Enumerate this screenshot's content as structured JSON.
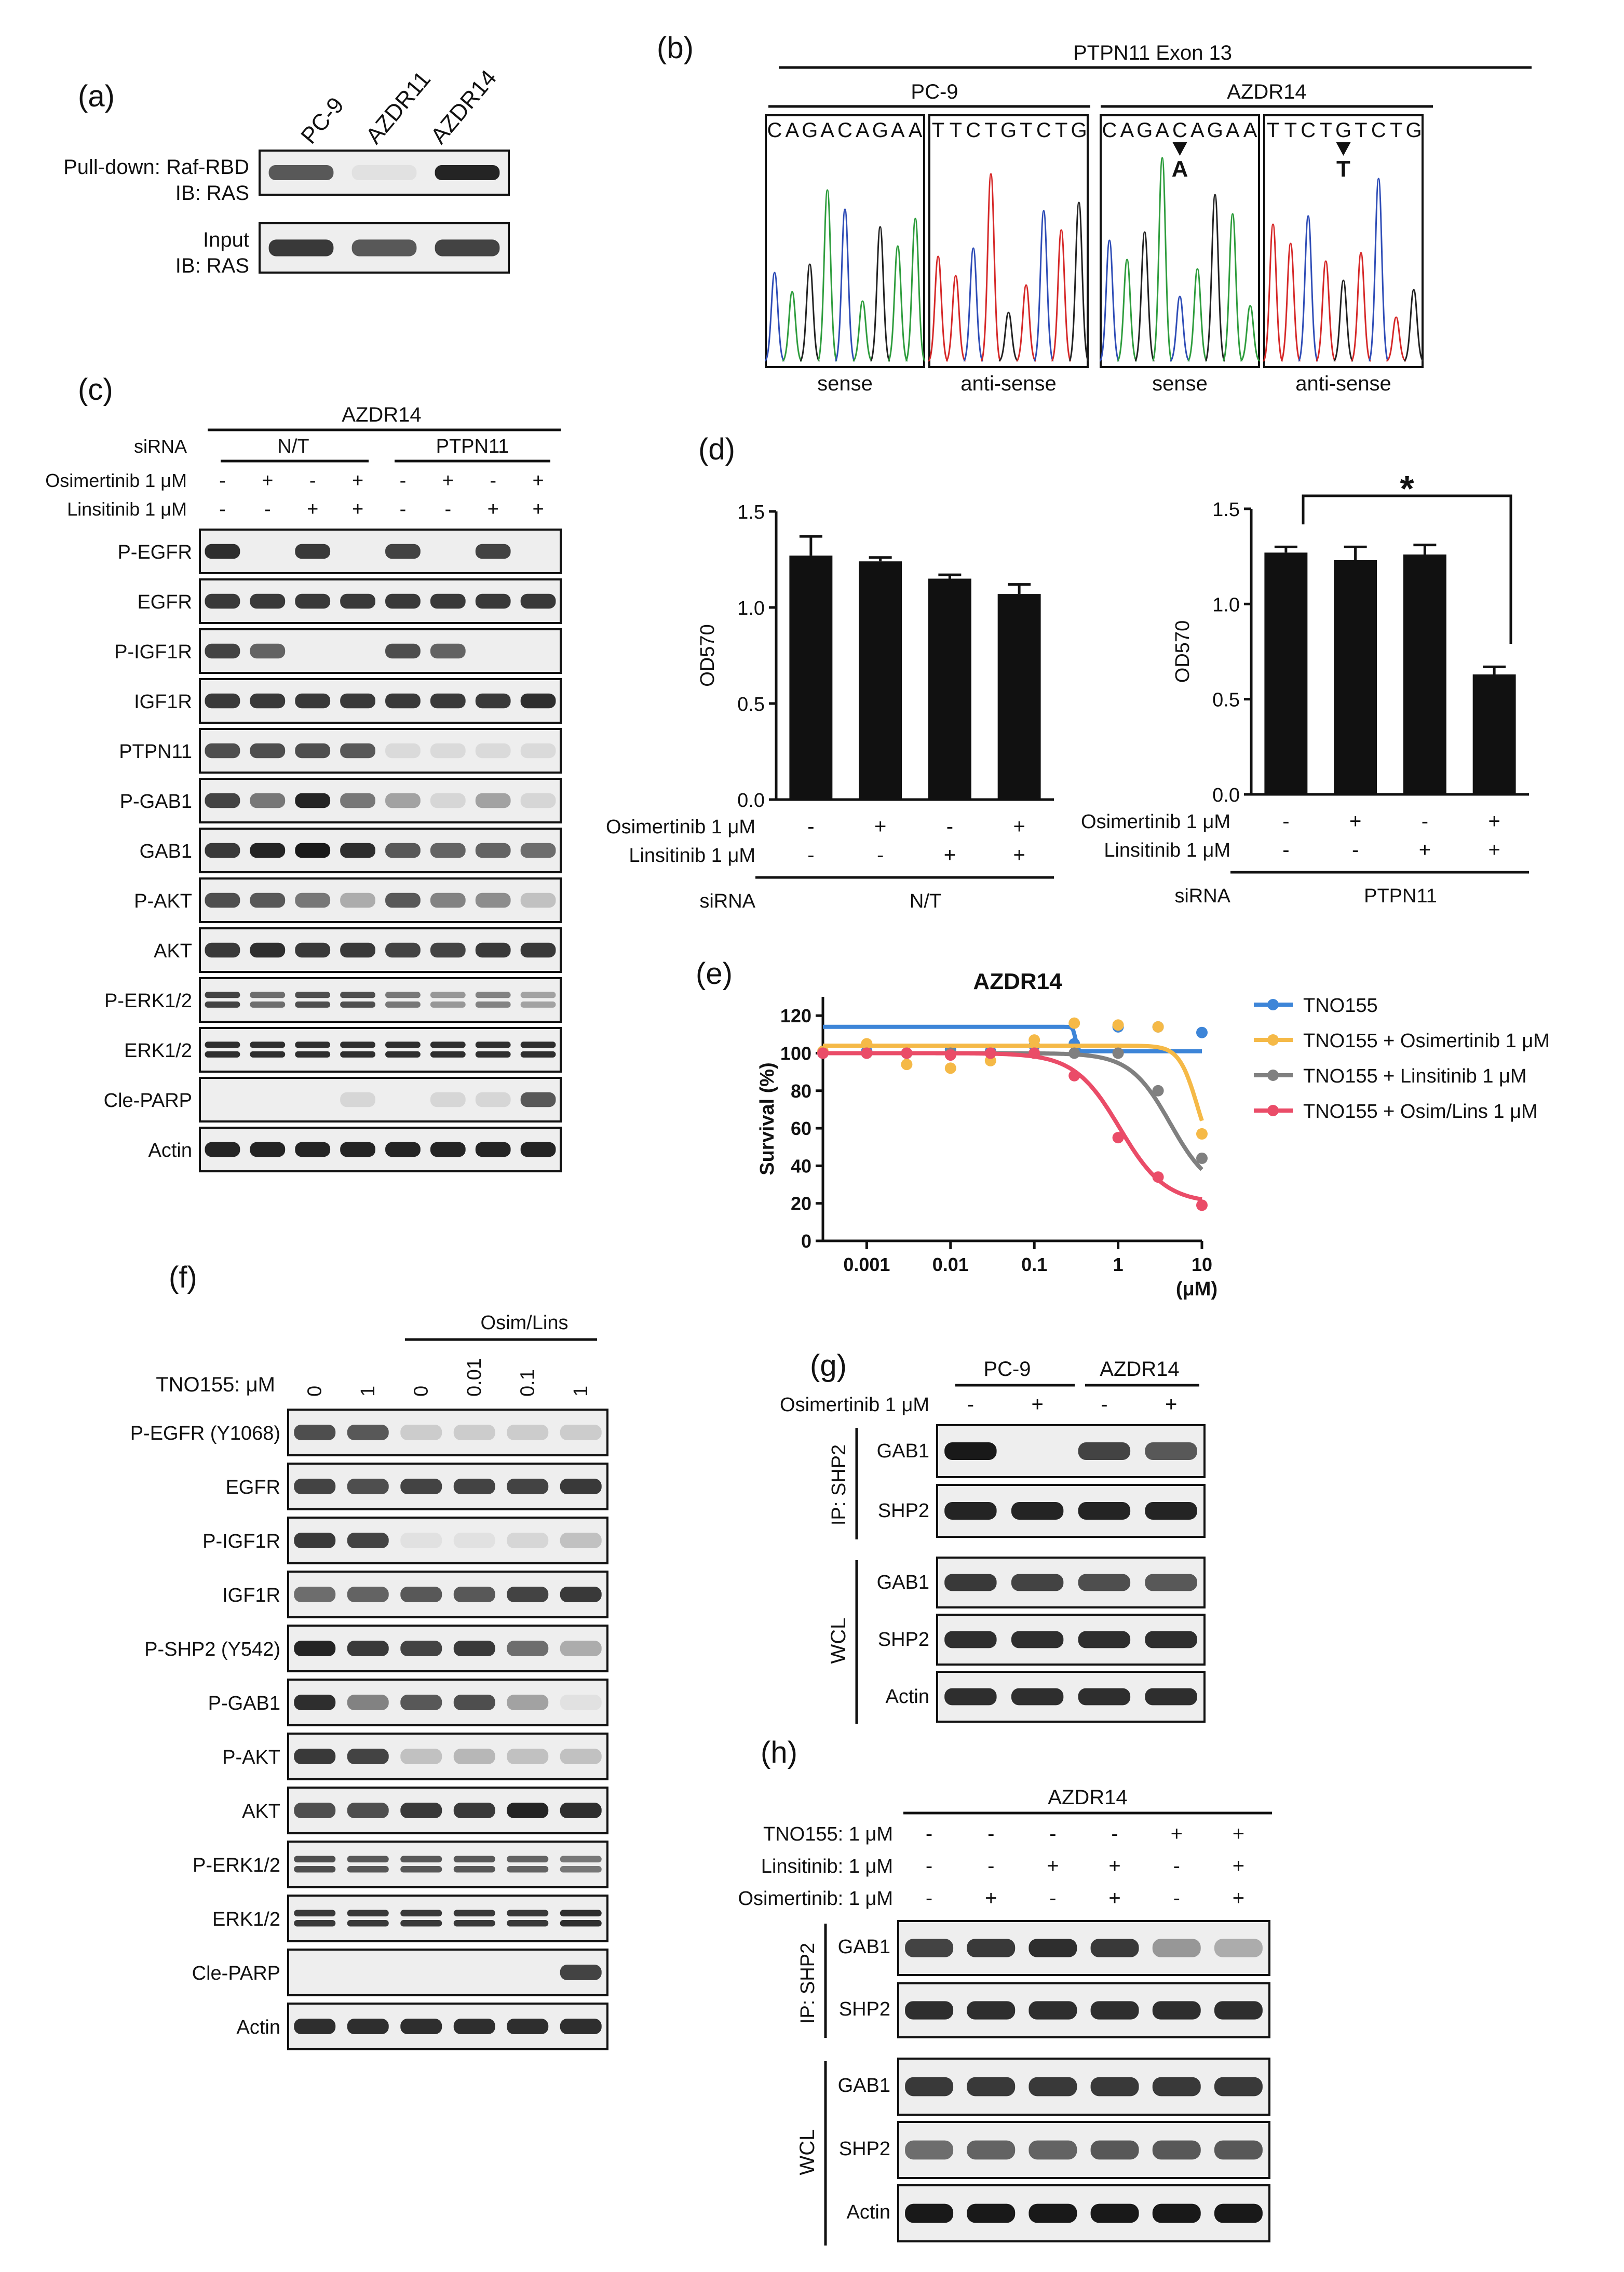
{
  "panel_a": {
    "label": "(a)",
    "lanes": [
      "PC-9",
      "AZDR11",
      "AZDR14"
    ],
    "rows": [
      {
        "l1": "Pull-down: Raf-RBD",
        "l2": "IB: RAS",
        "bands": [
          0.7,
          0.05,
          0.95
        ]
      },
      {
        "l1": "Input",
        "l2": "IB: RAS",
        "bands": [
          0.85,
          0.7,
          0.8
        ]
      }
    ]
  },
  "panel_b": {
    "label": "(b)",
    "title": "PTPN11 Exon 13",
    "groups": [
      "PC-9",
      "AZDR14"
    ],
    "traces": [
      {
        "seq": "CAGACAGAA",
        "caption": "sense",
        "mut": ""
      },
      {
        "seq": "TTCTGTCTG",
        "caption": "anti-sense",
        "mut": ""
      },
      {
        "seq": "CAGACAGAA",
        "caption": "sense",
        "mut": "A",
        "mutpos": 4
      },
      {
        "seq": "TTCTGTCTG",
        "caption": "anti-sense",
        "mut": "T",
        "mutpos": 4
      }
    ],
    "colors": {
      "A": "#2e9d3d",
      "C": "#2f4db7",
      "G": "#222222",
      "T": "#d62828"
    }
  },
  "panel_c": {
    "label": "(c)",
    "cell": "AZDR14",
    "siRNA_label": "siRNA",
    "groups": [
      "N/T",
      "PTPN11"
    ],
    "treat_rows": [
      {
        "label": "Osimertinib 1 μM",
        "signs": [
          "-",
          "+",
          "-",
          "+",
          "-",
          "+",
          "-",
          "+"
        ]
      },
      {
        "label": "Linsitinib 1 μM",
        "signs": [
          "-",
          "-",
          "+",
          "+",
          "-",
          "-",
          "+",
          "+"
        ]
      }
    ],
    "blots": [
      {
        "name": "P-EGFR",
        "bands": [
          0.9,
          0,
          0.85,
          0,
          0.8,
          0,
          0.8,
          0
        ]
      },
      {
        "name": "EGFR",
        "bands": [
          0.85,
          0.85,
          0.85,
          0.85,
          0.85,
          0.85,
          0.85,
          0.85
        ]
      },
      {
        "name": "P-IGF1R",
        "bands": [
          0.8,
          0.65,
          0,
          0,
          0.75,
          0.65,
          0,
          0
        ]
      },
      {
        "name": "IGF1R",
        "bands": [
          0.85,
          0.85,
          0.85,
          0.85,
          0.85,
          0.85,
          0.85,
          0.9
        ]
      },
      {
        "name": "PTPN11",
        "bands": [
          0.75,
          0.75,
          0.75,
          0.7,
          0.08,
          0.08,
          0.08,
          0.08
        ]
      },
      {
        "name": "P-GAB1",
        "bands": [
          0.8,
          0.55,
          0.95,
          0.55,
          0.35,
          0.1,
          0.35,
          0.1
        ]
      },
      {
        "name": "GAB1",
        "bands": [
          0.85,
          0.95,
          1,
          0.9,
          0.7,
          0.65,
          0.65,
          0.6
        ]
      },
      {
        "name": "P-AKT",
        "bands": [
          0.75,
          0.7,
          0.55,
          0.3,
          0.7,
          0.5,
          0.45,
          0.2
        ]
      },
      {
        "name": "AKT",
        "bands": [
          0.85,
          0.9,
          0.85,
          0.85,
          0.8,
          0.8,
          0.85,
          0.85
        ]
      },
      {
        "name": "P-ERK1/2",
        "bands": [
          0.8,
          0.6,
          0.75,
          0.75,
          0.55,
          0.4,
          0.5,
          0.35
        ]
      },
      {
        "name": "ERK1/2",
        "bands": [
          0.9,
          0.9,
          0.9,
          0.9,
          0.9,
          0.9,
          0.9,
          0.9
        ]
      },
      {
        "name": "Cle-PARP",
        "bands": [
          0,
          0,
          0,
          0.1,
          0,
          0.1,
          0.1,
          0.7
        ]
      },
      {
        "name": "Actin",
        "bands": [
          0.95,
          0.95,
          0.95,
          0.95,
          0.95,
          0.95,
          0.95,
          0.95
        ]
      }
    ]
  },
  "panel_d": {
    "label": "(d)",
    "row_labels": [
      "Osimertinib 1 μM",
      "Linsitinib 1 μM",
      "siRNA"
    ],
    "signs_osim": [
      "-",
      "+",
      "-",
      "+"
    ],
    "signs_lins": [
      "-",
      "-",
      "+",
      "+"
    ],
    "star": "*"
  },
  "panel_e": {
    "label": "(e)"
  },
  "panel_f": {
    "label": "(f)",
    "group_label": "Osim/Lins",
    "dose_label": "TNO155: μM",
    "doses": [
      "0",
      "1",
      "0",
      "0.01",
      "0.1",
      "1"
    ],
    "blots": [
      {
        "name": "P-EGFR (Y1068)",
        "bands": [
          0.75,
          0.7,
          0.15,
          0.15,
          0.15,
          0.15
        ]
      },
      {
        "name": "EGFR",
        "bands": [
          0.8,
          0.75,
          0.8,
          0.8,
          0.8,
          0.85
        ]
      },
      {
        "name": "P-IGF1R",
        "bands": [
          0.85,
          0.8,
          0.05,
          0.05,
          0.1,
          0.2
        ]
      },
      {
        "name": "IGF1R",
        "bands": [
          0.6,
          0.65,
          0.7,
          0.7,
          0.8,
          0.85
        ]
      },
      {
        "name": "P-SHP2 (Y542)",
        "bands": [
          0.95,
          0.85,
          0.8,
          0.85,
          0.6,
          0.3
        ]
      },
      {
        "name": "P-GAB1",
        "bands": [
          0.9,
          0.5,
          0.7,
          0.75,
          0.35,
          0.05
        ]
      },
      {
        "name": "P-AKT",
        "bands": [
          0.85,
          0.8,
          0.2,
          0.25,
          0.2,
          0.2
        ]
      },
      {
        "name": "AKT",
        "bands": [
          0.75,
          0.75,
          0.85,
          0.85,
          0.95,
          0.9
        ]
      },
      {
        "name": "P-ERK1/2",
        "bands": [
          0.75,
          0.7,
          0.7,
          0.7,
          0.65,
          0.55
        ]
      },
      {
        "name": "ERK1/2",
        "bands": [
          0.85,
          0.85,
          0.85,
          0.85,
          0.85,
          0.9
        ]
      },
      {
        "name": "Cle-PARP",
        "bands": [
          0,
          0,
          0,
          0,
          0,
          0.8
        ]
      },
      {
        "name": "Actin",
        "bands": [
          0.9,
          0.9,
          0.9,
          0.9,
          0.9,
          0.9
        ]
      }
    ]
  },
  "panel_g": {
    "label": "(g)",
    "groups": [
      "PC-9",
      "AZDR14"
    ],
    "treat_label": "Osimertinib 1 μM",
    "signs": [
      "-",
      "+",
      "-",
      "+"
    ],
    "ip_label": "IP: SHP2",
    "wcl_label": "WCL",
    "ip_blots": [
      {
        "name": "GAB1",
        "bands": [
          1,
          0,
          0.8,
          0.7
        ]
      },
      {
        "name": "SHP2",
        "bands": [
          0.95,
          0.95,
          0.95,
          0.95
        ]
      }
    ],
    "wcl_blots": [
      {
        "name": "GAB1",
        "bands": [
          0.85,
          0.8,
          0.75,
          0.7
        ]
      },
      {
        "name": "SHP2",
        "bands": [
          0.9,
          0.9,
          0.9,
          0.9
        ]
      },
      {
        "name": "Actin",
        "bands": [
          0.9,
          0.9,
          0.9,
          0.9
        ]
      }
    ]
  },
  "panel_h": {
    "label": "(h)",
    "cell": "AZDR14",
    "treat_rows": [
      {
        "label": "TNO155: 1 μM",
        "signs": [
          "-",
          "-",
          "-",
          "-",
          "+",
          "+"
        ]
      },
      {
        "label": "Linsitinib: 1 μM",
        "signs": [
          "-",
          "-",
          "+",
          "+",
          "-",
          "+"
        ]
      },
      {
        "label": "Osimertinib: 1 μM",
        "signs": [
          "-",
          "+",
          "-",
          "+",
          "-",
          "+"
        ]
      }
    ],
    "ip_label": "IP: SHP2",
    "wcl_label": "WCL",
    "ip_blots": [
      {
        "name": "GAB1",
        "bands": [
          0.8,
          0.85,
          0.9,
          0.85,
          0.4,
          0.3
        ]
      },
      {
        "name": "SHP2",
        "bands": [
          0.9,
          0.9,
          0.9,
          0.9,
          0.9,
          0.9
        ]
      }
    ],
    "wcl_blots": [
      {
        "name": "GAB1",
        "bands": [
          0.85,
          0.85,
          0.85,
          0.85,
          0.85,
          0.85
        ]
      },
      {
        "name": "SHP2",
        "bands": [
          0.6,
          0.65,
          0.65,
          0.7,
          0.7,
          0.7
        ]
      },
      {
        "name": "Actin",
        "bands": [
          1,
          1,
          1,
          1,
          1,
          1
        ]
      }
    ]
  },
  "chart_data": [
    {
      "type": "bar",
      "panel": "(d) left",
      "categories": [
        "-/-",
        "+/-",
        "-/+",
        "+/+"
      ],
      "group": "N/T",
      "values": [
        1.27,
        1.24,
        1.15,
        1.07
      ],
      "errors": [
        0.1,
        0.02,
        0.02,
        0.05
      ],
      "ylabel": "OD570",
      "ylim": [
        0,
        1.5
      ],
      "yticks": [
        "0.0",
        "0.5",
        "1.0",
        "1.5"
      ],
      "color": "#111111"
    },
    {
      "type": "bar",
      "panel": "(d) right",
      "categories": [
        "-/-",
        "+/-",
        "-/+",
        "+/+"
      ],
      "group": "PTPN11",
      "values": [
        1.27,
        1.23,
        1.26,
        0.63
      ],
      "errors": [
        0.03,
        0.07,
        0.05,
        0.04
      ],
      "ylabel": "OD570",
      "ylim": [
        0,
        1.5
      ],
      "yticks": [
        "0.0",
        "0.5",
        "1.0",
        "1.5"
      ],
      "color": "#111111"
    },
    {
      "type": "line",
      "panel": "(e)",
      "title": "AZDR14",
      "xlabel": "(μM)",
      "ylabel": "Survival (%)",
      "xscale": "log",
      "xlim": [
        0.0003,
        10
      ],
      "ylim": [
        0,
        130
      ],
      "xticks": [
        "0.001",
        "0.01",
        "0.1",
        "1",
        "10"
      ],
      "yticks": [
        "0",
        "20",
        "40",
        "60",
        "80",
        "100",
        "120"
      ],
      "legend": "right",
      "x": [
        0.0003,
        0.001,
        0.003,
        0.01,
        0.03,
        0.1,
        0.3,
        1,
        3,
        10
      ],
      "series": [
        {
          "name": "TNO155",
          "color": "#3d85d8",
          "values": [
            100,
            101,
            100,
            102,
            101,
            104,
            105,
            114,
            114,
            111
          ],
          "ic50": 0.31,
          "top": 114,
          "bottom": 101,
          "hill": 30
        },
        {
          "name": "TNO155 + Osimertinib 1 μM",
          "color": "#f5b947",
          "values": [
            101,
            105,
            94,
            92,
            96,
            107,
            116,
            115,
            114,
            57
          ],
          "ic50": 8.8,
          "top": 104,
          "bottom": 40,
          "hill": 4
        },
        {
          "name": "TNO155 + Linsitinib 1 μM",
          "color": "#808080",
          "values": [
            100,
            100,
            100,
            100,
            100,
            100,
            100,
            100,
            80,
            44
          ],
          "ic50": 4.2,
          "top": 100,
          "bottom": 25,
          "hill": 1.8
        },
        {
          "name": "TNO155 + Osim/Lins 1 μM",
          "color": "#ea4c68",
          "values": [
            100,
            100,
            100,
            99,
            100,
            100,
            88,
            55,
            34,
            19
          ],
          "ic50": 1.05,
          "top": 100,
          "bottom": 20,
          "hill": 1.6
        }
      ]
    }
  ]
}
